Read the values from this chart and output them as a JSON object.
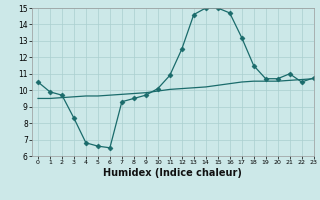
{
  "xlabel": "Humidex (Indice chaleur)",
  "ylabel": "",
  "bg_color": "#cce8e8",
  "grid_color": "#aacfcf",
  "line_color": "#1a6b6b",
  "xlim": [
    -0.5,
    23
  ],
  "ylim": [
    6,
    15
  ],
  "xticks": [
    0,
    1,
    2,
    3,
    4,
    5,
    6,
    7,
    8,
    9,
    10,
    11,
    12,
    13,
    14,
    15,
    16,
    17,
    18,
    19,
    20,
    21,
    22,
    23
  ],
  "yticks": [
    6,
    7,
    8,
    9,
    10,
    11,
    12,
    13,
    14,
    15
  ],
  "line1_x": [
    0,
    1,
    2,
    3,
    4,
    5,
    6,
    7,
    8,
    9,
    10,
    11,
    12,
    13,
    14,
    15,
    16,
    17,
    18,
    19,
    20,
    21,
    22,
    23
  ],
  "line1_y": [
    10.5,
    9.9,
    9.7,
    8.3,
    6.8,
    6.6,
    6.5,
    9.3,
    9.5,
    9.7,
    10.1,
    10.9,
    12.5,
    14.6,
    15.0,
    15.0,
    14.7,
    13.2,
    11.5,
    10.7,
    10.7,
    11.0,
    10.5,
    10.75
  ],
  "line2_x": [
    0,
    1,
    2,
    3,
    4,
    5,
    6,
    7,
    8,
    9,
    10,
    11,
    12,
    13,
    14,
    15,
    16,
    17,
    18,
    19,
    20,
    21,
    22,
    23
  ],
  "line2_y": [
    9.5,
    9.5,
    9.55,
    9.6,
    9.65,
    9.65,
    9.7,
    9.75,
    9.8,
    9.85,
    9.95,
    10.05,
    10.1,
    10.15,
    10.2,
    10.3,
    10.4,
    10.5,
    10.55,
    10.55,
    10.55,
    10.6,
    10.65,
    10.7
  ],
  "marker": "D",
  "marker_size": 2.5,
  "tick_fontsize": 5.5,
  "xlabel_fontsize": 7
}
